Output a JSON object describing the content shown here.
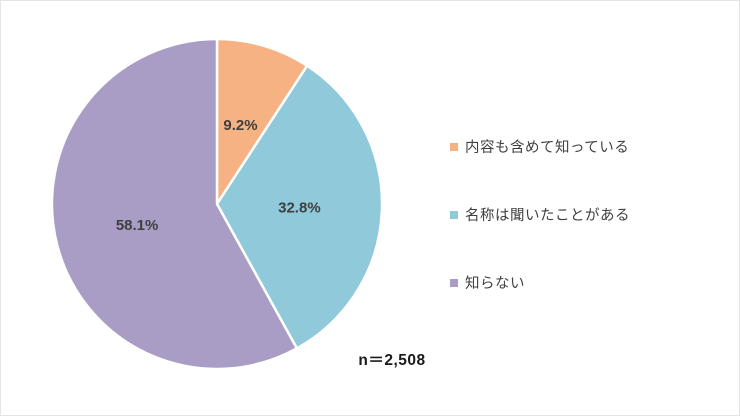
{
  "chart_data": {
    "type": "pie",
    "title": "",
    "categories": [
      "内容も含めて知っている",
      "名称は聞いたことがある",
      "知らない"
    ],
    "values": [
      9.2,
      32.8,
      58.1
    ],
    "data_labels": [
      "9.2%",
      "32.8%",
      "58.1%"
    ],
    "colors": [
      "#F6B282",
      "#8FC9DA",
      "#A99DC5"
    ],
    "start_angle_deg": 0,
    "direction": "clockwise",
    "legend_position": "right",
    "slice_border_color": "#FFFFFF",
    "data_label_color": "#3F3F3F",
    "annotation": "n＝2,508"
  }
}
